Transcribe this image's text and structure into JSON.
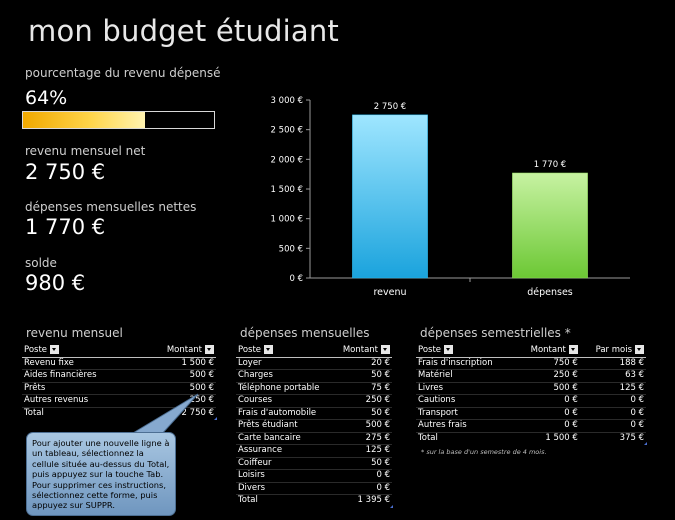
{
  "title": "mon budget étudiant",
  "summary": {
    "pct_label": "pourcentage du revenu dépensé",
    "pct_value": "64%",
    "pct_fraction": 0.64,
    "income_label": "revenu mensuel net",
    "income_value": "2 750 €",
    "expenses_label": "dépenses mensuelles nettes",
    "expenses_value": "1 770 €",
    "balance_label": "solde",
    "balance_value": "980 €"
  },
  "chart_data": {
    "type": "bar",
    "categories": [
      "revenu",
      "dépenses"
    ],
    "values": [
      2750,
      1770
    ],
    "data_labels": [
      "2 750 €",
      "1 770 €"
    ],
    "colors": [
      "#2bb6e8",
      "#8fd85a"
    ],
    "ylim": [
      0,
      3000
    ],
    "yticks": [
      "0 €",
      "500 €",
      "1 000 €",
      "1 500 €",
      "2 000 €",
      "2 500 €",
      "3 000 €"
    ],
    "grid": false,
    "legend": "none"
  },
  "income": {
    "title": "revenu mensuel",
    "headers": [
      "Poste",
      "Montant"
    ],
    "rows": [
      [
        "Revenu fixe",
        "1 500 €"
      ],
      [
        "Aides financières",
        "500 €"
      ],
      [
        "Prêts",
        "500 €"
      ],
      [
        "Autres revenus",
        "250 €"
      ]
    ],
    "total": [
      "Total",
      "2 750 €"
    ]
  },
  "monthly": {
    "title": "dépenses mensuelles",
    "headers": [
      "Poste",
      "Montant"
    ],
    "rows": [
      [
        "Loyer",
        "20 €"
      ],
      [
        "Charges",
        "50 €"
      ],
      [
        "Téléphone portable",
        "75 €"
      ],
      [
        "Courses",
        "250 €"
      ],
      [
        "Frais d'automobile",
        "50 €"
      ],
      [
        "Prêts étudiant",
        "500 €"
      ],
      [
        "Carte bancaire",
        "275 €"
      ],
      [
        "Assurance",
        "125 €"
      ],
      [
        "Coiffeur",
        "50 €"
      ],
      [
        "Loisirs",
        "0 €"
      ],
      [
        "Divers",
        "0 €"
      ]
    ],
    "total": [
      "Total",
      "1 395 €"
    ]
  },
  "semester": {
    "title": "dépenses semestrielles *",
    "headers": [
      "Poste",
      "Montant",
      "Par mois"
    ],
    "rows": [
      [
        "Frais d'inscription",
        "750 €",
        "188 €"
      ],
      [
        "Matériel",
        "250 €",
        "63 €"
      ],
      [
        "Livres",
        "500 €",
        "125 €"
      ],
      [
        "Cautions",
        "0 €",
        "0 €"
      ],
      [
        "Transport",
        "0 €",
        "0 €"
      ],
      [
        "Autres frais",
        "0 €",
        "0 €"
      ]
    ],
    "total": [
      "Total",
      "1 500 €",
      "375 €"
    ],
    "footnote": "* sur la base d'un semestre de 4 mois."
  },
  "callout": "Pour ajouter une nouvelle ligne à un tableau, sélectionnez la cellule située au-dessus du Total, puis appuyez sur la touche Tab. Pour supprimer ces instructions, sélectionnez cette forme, puis appuyez sur SUPPR."
}
